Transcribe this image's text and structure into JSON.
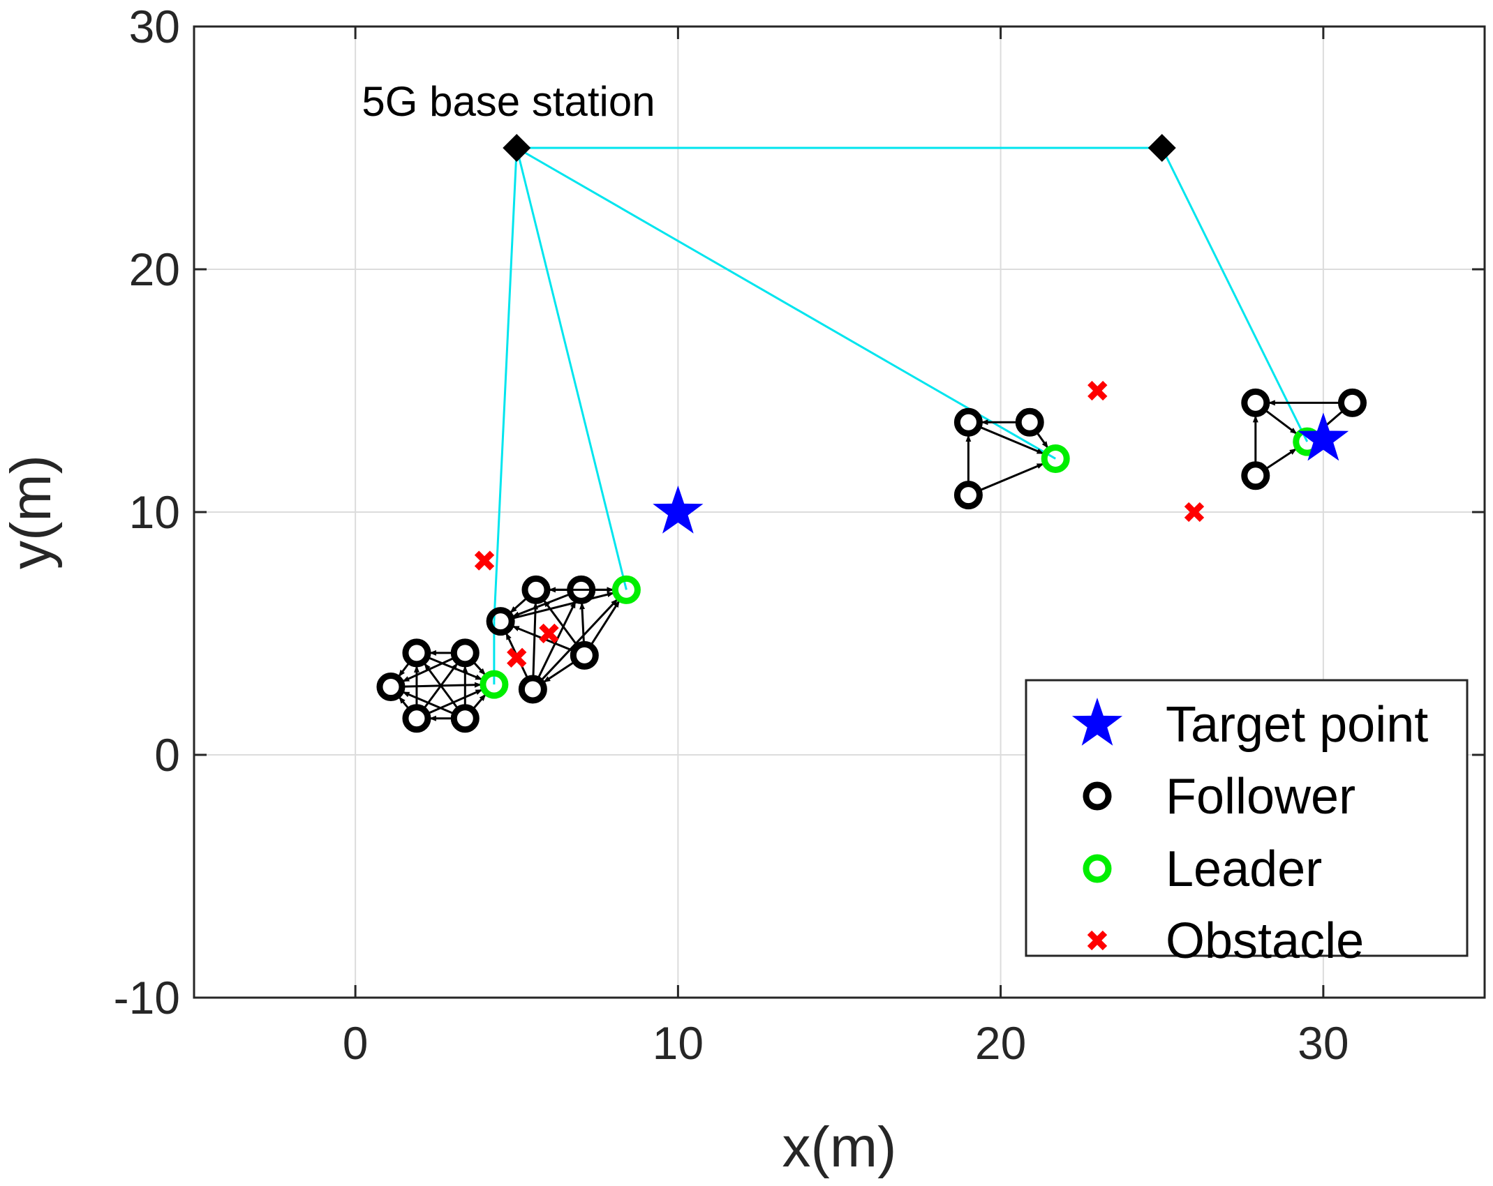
{
  "chart_data": {
    "type": "scatter",
    "title": "",
    "xlabel": "x(m)",
    "ylabel": "y(m)",
    "xlim": [
      -5,
      35
    ],
    "ylim": [
      -10,
      30
    ],
    "xticks": [
      0,
      10,
      20,
      30
    ],
    "yticks": [
      -10,
      0,
      10,
      20,
      30
    ],
    "grid": true,
    "legend": {
      "position": "bottom-right",
      "entries": [
        {
          "label": "Target point",
          "marker": "star",
          "color": "#0000ff"
        },
        {
          "label": "Follower",
          "marker": "circle",
          "color": "#000000"
        },
        {
          "label": "Leader",
          "marker": "circle",
          "color": "#00ee00"
        },
        {
          "label": "Obstacle",
          "marker": "x",
          "color": "#ff0000"
        }
      ]
    },
    "annotations": [
      {
        "text": "5G base station",
        "x": 0.2,
        "y": 26.9
      }
    ],
    "colors": {
      "link": "#00e5ee",
      "base_station": "#000000",
      "target": "#0000ff",
      "leader": "#00ee00",
      "follower": "#000000",
      "obstacle": "#ff0000",
      "grid": "#dcdcdc"
    },
    "base_stations": [
      [
        5,
        25
      ],
      [
        25,
        25
      ]
    ],
    "base_station_links": [
      [
        [
          5,
          25
        ],
        [
          25,
          25
        ]
      ],
      [
        [
          5,
          25
        ],
        [
          4.3,
          5.5
        ]
      ],
      [
        [
          4.3,
          5.5
        ],
        [
          4.3,
          2.9
        ]
      ],
      [
        [
          5,
          25
        ],
        [
          8.4,
          6.8
        ]
      ],
      [
        [
          5,
          25
        ],
        [
          21.7,
          12.2
        ]
      ],
      [
        [
          25,
          25
        ],
        [
          29.5,
          12.9
        ]
      ]
    ],
    "targets": [
      [
        10,
        10
      ],
      [
        30,
        13
      ]
    ],
    "obstacles": [
      [
        4,
        8
      ],
      [
        5,
        4
      ],
      [
        6,
        5
      ],
      [
        23,
        15
      ],
      [
        26,
        10
      ]
    ],
    "formations": [
      {
        "leader": [
          4.3,
          2.9
        ],
        "followers": [
          [
            1.1,
            2.8
          ],
          [
            1.9,
            4.2
          ],
          [
            3.4,
            4.2
          ],
          [
            1.9,
            1.5
          ],
          [
            3.4,
            1.5
          ]
        ],
        "edges": [
          [
            1,
            0
          ],
          [
            2,
            0
          ],
          [
            3,
            0
          ],
          [
            4,
            0
          ],
          [
            5,
            0
          ],
          [
            2,
            1
          ],
          [
            3,
            1
          ],
          [
            4,
            1
          ],
          [
            5,
            1
          ],
          [
            3,
            2
          ],
          [
            4,
            2
          ],
          [
            5,
            2
          ],
          [
            4,
            3
          ],
          [
            5,
            3
          ],
          [
            5,
            4
          ]
        ]
      },
      {
        "leader": [
          8.4,
          6.8
        ],
        "followers": [
          [
            4.5,
            5.5
          ],
          [
            5.6,
            6.8
          ],
          [
            7.0,
            6.8
          ],
          [
            5.5,
            2.7
          ],
          [
            7.1,
            4.1
          ]
        ],
        "edges": [
          [
            1,
            0
          ],
          [
            2,
            0
          ],
          [
            3,
            0
          ],
          [
            4,
            0
          ],
          [
            5,
            0
          ],
          [
            2,
            1
          ],
          [
            3,
            1
          ],
          [
            4,
            1
          ],
          [
            5,
            1
          ],
          [
            3,
            2
          ],
          [
            4,
            2
          ],
          [
            5,
            2
          ],
          [
            4,
            3
          ],
          [
            5,
            3
          ],
          [
            5,
            4
          ]
        ]
      },
      {
        "leader": [
          21.7,
          12.2
        ],
        "followers": [
          [
            19.0,
            13.7
          ],
          [
            20.9,
            13.7
          ],
          [
            19.0,
            10.7
          ]
        ],
        "edges": [
          [
            1,
            0
          ],
          [
            2,
            0
          ],
          [
            3,
            0
          ],
          [
            2,
            1
          ],
          [
            3,
            1
          ]
        ]
      },
      {
        "leader": [
          29.5,
          12.9
        ],
        "followers": [
          [
            27.9,
            14.5
          ],
          [
            30.9,
            14.5
          ],
          [
            27.9,
            11.5
          ]
        ],
        "edges": [
          [
            1,
            0
          ],
          [
            2,
            0
          ],
          [
            3,
            0
          ],
          [
            2,
            1
          ],
          [
            3,
            1
          ]
        ]
      }
    ]
  }
}
